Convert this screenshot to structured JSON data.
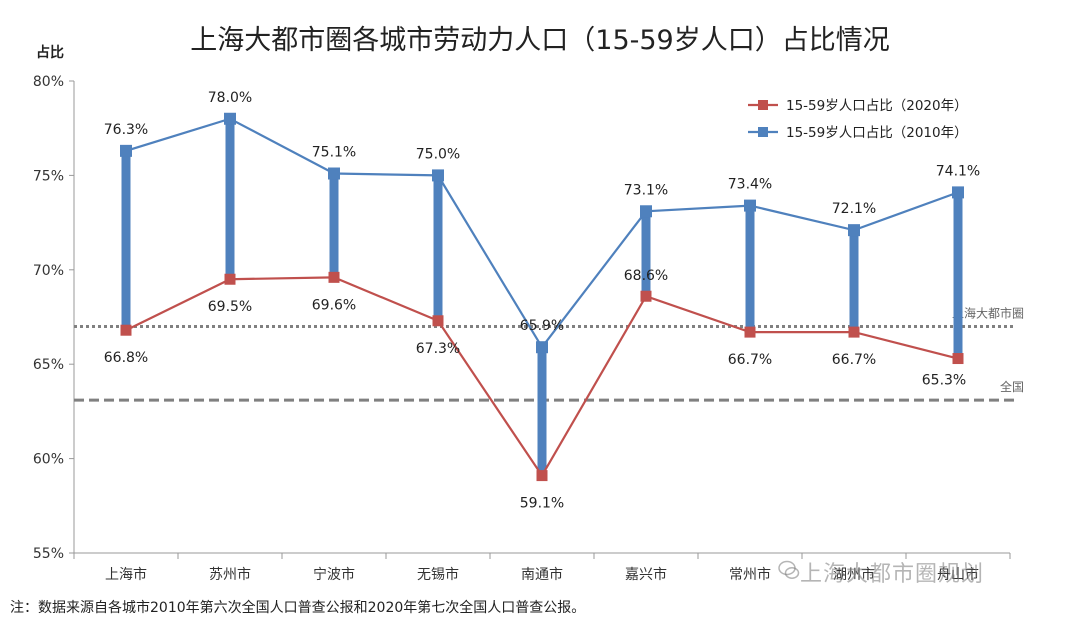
{
  "chart_data": {
    "type": "line",
    "title": "上海大都市圈各城市劳动力人口（15-59岁人口）占比情况",
    "ylabel": "占比",
    "categories": [
      "上海市",
      "苏州市",
      "宁波市",
      "无锡市",
      "南通市",
      "嘉兴市",
      "常州市",
      "湖州市",
      "舟山市"
    ],
    "ylim": [
      55,
      80
    ],
    "yticks": [
      "55%",
      "60%",
      "65%",
      "70%",
      "75%",
      "80%"
    ],
    "series": [
      {
        "name": "15-59岁人口占比（2020年）",
        "color": "#C0504D",
        "values": [
          66.8,
          69.5,
          69.6,
          67.3,
          59.1,
          68.6,
          66.7,
          66.7,
          65.3
        ],
        "labels": [
          "66.8%",
          "69.5%",
          "69.6%",
          "67.3%",
          "59.1%",
          "68.6%",
          "66.7%",
          "66.7%",
          "65.3%"
        ]
      },
      {
        "name": "15-59岁人口占比（2010年）",
        "color": "#4F81BD",
        "values": [
          76.3,
          78.0,
          75.1,
          75.0,
          65.9,
          73.1,
          73.4,
          72.1,
          74.1
        ],
        "labels": [
          "76.3%",
          "78.0%",
          "75.1%",
          "75.0%",
          "65.9%",
          "73.1%",
          "73.4%",
          "72.1%",
          "74.1%"
        ]
      }
    ],
    "reference_lines": [
      {
        "name": "上海大都市圈",
        "value": 67.0,
        "style": "dotted"
      },
      {
        "name": "全国",
        "value": 63.1,
        "style": "dashed"
      }
    ],
    "legend": "top-right",
    "grid": false
  },
  "footnote": "注：数据来源自各城市2010年第六次全国人口普查公报和2020年第七次全国人口普查公报。",
  "watermark": "上海大都市圈规划"
}
